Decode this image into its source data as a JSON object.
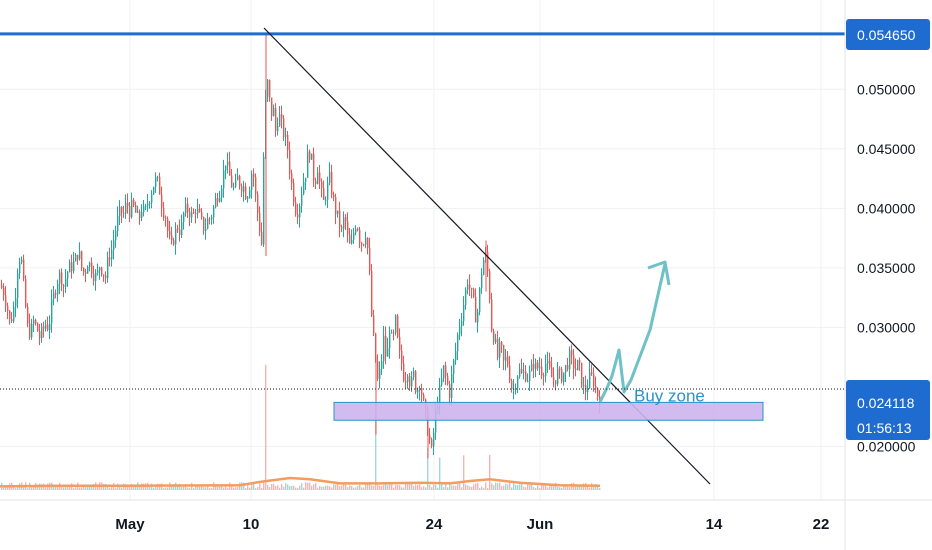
{
  "chart_data": {
    "type": "candlestick",
    "title": "",
    "x_ticks": [
      "May",
      "10",
      "24",
      "Jun",
      "14",
      "22"
    ],
    "y_ticks": [
      "0.050000",
      "0.045000",
      "0.040000",
      "0.035000",
      "0.030000",
      "0.020000"
    ],
    "ylim": [
      0.0155,
      0.0575
    ],
    "grid": true,
    "price_labels": {
      "resistance": "0.054650",
      "last_price": "0.024118",
      "countdown": "01:56:13"
    },
    "annotations": {
      "buy_zone_label": "Buy zone",
      "buy_zone_range": [
        0.0222,
        0.0237
      ]
    },
    "horizontal_lines": [
      0.05465
    ],
    "close_path": [
      [
        0,
        0.0335
      ],
      [
        3,
        0.033
      ],
      [
        6,
        0.032
      ],
      [
        9,
        0.0305
      ],
      [
        12,
        0.031
      ],
      [
        15,
        0.033
      ],
      [
        18,
        0.036
      ],
      [
        21,
        0.0355
      ],
      [
        24,
        0.0325
      ],
      [
        27,
        0.03
      ],
      [
        30,
        0.0295
      ],
      [
        33,
        0.0305
      ],
      [
        36,
        0.03
      ],
      [
        39,
        0.0292
      ],
      [
        42,
        0.0297
      ],
      [
        45,
        0.0303
      ],
      [
        48,
        0.03
      ],
      [
        51,
        0.0318
      ],
      [
        54,
        0.033
      ],
      [
        57,
        0.034
      ],
      [
        60,
        0.0345
      ],
      [
        63,
        0.0335
      ],
      [
        66,
        0.0345
      ],
      [
        69,
        0.035
      ],
      [
        72,
        0.0352
      ],
      [
        75,
        0.0357
      ],
      [
        78,
        0.0365
      ],
      [
        81,
        0.035
      ],
      [
        84,
        0.0345
      ],
      [
        87,
        0.0355
      ],
      [
        90,
        0.0352
      ],
      [
        93,
        0.0345
      ],
      [
        96,
        0.0342
      ],
      [
        99,
        0.0352
      ],
      [
        102,
        0.0348
      ],
      [
        105,
        0.0342
      ],
      [
        108,
        0.036
      ],
      [
        111,
        0.0365
      ],
      [
        114,
        0.0378
      ],
      [
        117,
        0.039
      ],
      [
        120,
        0.0398
      ],
      [
        123,
        0.0395
      ],
      [
        126,
        0.0405
      ],
      [
        129,
        0.0398
      ],
      [
        132,
        0.0403
      ],
      [
        135,
        0.0396
      ],
      [
        138,
        0.039
      ],
      [
        141,
        0.04
      ],
      [
        144,
        0.0395
      ],
      [
        147,
        0.0405
      ],
      [
        150,
        0.0412
      ],
      [
        153,
        0.042
      ],
      [
        156,
        0.0425
      ],
      [
        159,
        0.0415
      ],
      [
        162,
        0.04
      ],
      [
        165,
        0.0393
      ],
      [
        168,
        0.0375
      ],
      [
        171,
        0.0368
      ],
      [
        174,
        0.0378
      ],
      [
        177,
        0.0385
      ],
      [
        180,
        0.038
      ],
      [
        183,
        0.0395
      ],
      [
        186,
        0.04
      ],
      [
        189,
        0.0397
      ],
      [
        192,
        0.0392
      ],
      [
        195,
        0.04
      ],
      [
        198,
        0.0395
      ],
      [
        201,
        0.0388
      ],
      [
        204,
        0.0382
      ],
      [
        207,
        0.039
      ],
      [
        210,
        0.0392
      ],
      [
        213,
        0.04
      ],
      [
        216,
        0.041
      ],
      [
        219,
        0.0415
      ],
      [
        222,
        0.0425
      ],
      [
        225,
        0.044
      ],
      [
        228,
        0.043
      ],
      [
        231,
        0.042
      ],
      [
        234,
        0.0415
      ],
      [
        237,
        0.0425
      ],
      [
        240,
        0.042
      ],
      [
        243,
        0.0418
      ],
      [
        246,
        0.041
      ],
      [
        249,
        0.042
      ],
      [
        252,
        0.0435
      ],
      [
        255,
        0.041
      ],
      [
        258,
        0.039
      ],
      [
        261,
        0.037
      ],
      [
        264,
        0.048
      ],
      [
        266,
        0.05
      ],
      [
        268,
        0.051
      ],
      [
        270,
        0.047
      ],
      [
        272,
        0.049
      ],
      [
        275,
        0.0465
      ],
      [
        278,
        0.048
      ],
      [
        281,
        0.047
      ],
      [
        284,
        0.046
      ],
      [
        287,
        0.045
      ],
      [
        290,
        0.0425
      ],
      [
        293,
        0.041
      ],
      [
        296,
        0.0395
      ],
      [
        299,
        0.0405
      ],
      [
        302,
        0.042
      ],
      [
        305,
        0.043
      ],
      [
        308,
        0.045
      ],
      [
        311,
        0.044
      ],
      [
        314,
        0.042
      ],
      [
        317,
        0.0435
      ],
      [
        320,
        0.0415
      ],
      [
        323,
        0.0405
      ],
      [
        326,
        0.0415
      ],
      [
        329,
        0.0425
      ],
      [
        332,
        0.041
      ],
      [
        335,
        0.0398
      ],
      [
        338,
        0.039
      ],
      [
        341,
        0.038
      ],
      [
        344,
        0.0395
      ],
      [
        347,
        0.0375
      ],
      [
        350,
        0.0365
      ],
      [
        353,
        0.038
      ],
      [
        356,
        0.039
      ],
      [
        359,
        0.0375
      ],
      [
        362,
        0.037
      ],
      [
        365,
        0.038
      ],
      [
        368,
        0.036
      ],
      [
        371,
        0.031
      ],
      [
        374,
        0.028
      ],
      [
        377,
        0.0255
      ],
      [
        380,
        0.0265
      ],
      [
        383,
        0.029
      ],
      [
        386,
        0.027
      ],
      [
        389,
        0.03
      ],
      [
        392,
        0.0285
      ],
      [
        395,
        0.0305
      ],
      [
        398,
        0.028
      ],
      [
        401,
        0.027
      ],
      [
        404,
        0.0255
      ],
      [
        407,
        0.0265
      ],
      [
        410,
        0.025
      ],
      [
        413,
        0.026
      ],
      [
        416,
        0.0245
      ],
      [
        419,
        0.0255
      ],
      [
        422,
        0.024
      ],
      [
        425,
        0.0225
      ],
      [
        428,
        0.021
      ],
      [
        431,
        0.0195
      ],
      [
        434,
        0.022
      ],
      [
        437,
        0.024
      ],
      [
        440,
        0.025
      ],
      [
        443,
        0.0265
      ],
      [
        446,
        0.0255
      ],
      [
        449,
        0.0245
      ],
      [
        452,
        0.0265
      ],
      [
        455,
        0.028
      ],
      [
        458,
        0.03
      ],
      [
        461,
        0.031
      ],
      [
        464,
        0.0325
      ],
      [
        467,
        0.034
      ],
      [
        470,
        0.033
      ],
      [
        473,
        0.032
      ],
      [
        476,
        0.0305
      ],
      [
        479,
        0.033
      ],
      [
        482,
        0.0355
      ],
      [
        485,
        0.036
      ],
      [
        488,
        0.034
      ],
      [
        491,
        0.03
      ],
      [
        494,
        0.029
      ],
      [
        497,
        0.0275
      ],
      [
        500,
        0.0285
      ],
      [
        503,
        0.027
      ],
      [
        506,
        0.0275
      ],
      [
        509,
        0.026
      ],
      [
        512,
        0.0245
      ],
      [
        515,
        0.0255
      ],
      [
        518,
        0.0265
      ],
      [
        521,
        0.026
      ],
      [
        524,
        0.0262
      ],
      [
        527,
        0.0258
      ],
      [
        530,
        0.0262
      ],
      [
        533,
        0.027
      ],
      [
        536,
        0.0265
      ],
      [
        539,
        0.0268
      ],
      [
        542,
        0.0262
      ],
      [
        545,
        0.027
      ],
      [
        548,
        0.0265
      ],
      [
        551,
        0.0258
      ],
      [
        554,
        0.0255
      ],
      [
        557,
        0.0262
      ],
      [
        560,
        0.0258
      ],
      [
        563,
        0.0262
      ],
      [
        566,
        0.0268
      ],
      [
        569,
        0.0275
      ],
      [
        572,
        0.027
      ],
      [
        575,
        0.0265
      ],
      [
        578,
        0.027
      ],
      [
        581,
        0.0255
      ],
      [
        584,
        0.0245
      ],
      [
        587,
        0.0252
      ],
      [
        590,
        0.026
      ],
      [
        593,
        0.0255
      ],
      [
        596,
        0.0245
      ],
      [
        599,
        0.0241
      ]
    ],
    "volume_avg_path": [
      [
        0,
        0.3
      ],
      [
        60,
        0.35
      ],
      [
        120,
        0.35
      ],
      [
        180,
        0.38
      ],
      [
        240,
        0.4
      ],
      [
        262,
        0.7
      ],
      [
        290,
        1.0
      ],
      [
        310,
        0.9
      ],
      [
        340,
        0.55
      ],
      [
        380,
        0.55
      ],
      [
        420,
        0.6
      ],
      [
        450,
        0.55
      ],
      [
        470,
        0.75
      ],
      [
        490,
        0.9
      ],
      [
        520,
        0.6
      ],
      [
        560,
        0.4
      ],
      [
        600,
        0.35
      ]
    ],
    "volume_spikes": [
      [
        266,
        10
      ],
      [
        376,
        7
      ],
      [
        428,
        3
      ],
      [
        440,
        2.5
      ],
      [
        463,
        2.5
      ],
      [
        490,
        2.3
      ]
    ]
  },
  "colors": {
    "up": "#26a69a",
    "down": "#ef5350",
    "resistance_line": "#1e6ccf",
    "trendline": "#131722",
    "buy_zone_fill": "#cdb4ec",
    "buy_zone_border": "#2196c9",
    "arrow": "#6ec1c7",
    "volume_ma": "#f39c61",
    "price_tag": "#1e6ccf"
  }
}
